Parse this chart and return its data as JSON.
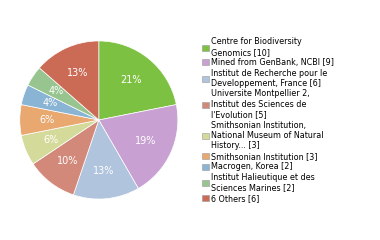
{
  "labels": [
    "Centre for Biodiversity\nGenomics [10]",
    "Mined from GenBank, NCBI [9]",
    "Institut de Recherche pour le\nDeveloppement, France [6]",
    "Universite Montpellier 2,\nInstitut des Sciences de\nl'Evolution [5]",
    "Smithsonian Institution,\nNational Museum of Natural\nHistory... [3]",
    "Smithsonian Institution [3]",
    "Macrogen, Korea [2]",
    "Institut Halieutique et des\nSciences Marines [2]",
    "6 Others [6]"
  ],
  "values": [
    21,
    19,
    13,
    10,
    6,
    6,
    4,
    4,
    13
  ],
  "colors": [
    "#7dc142",
    "#c8a0d2",
    "#b0c4de",
    "#d2897a",
    "#d4db9a",
    "#e8a870",
    "#8ab4d4",
    "#98c490",
    "#cc6b55"
  ],
  "pct_labels": [
    "21%",
    "19%",
    "13%",
    "10%",
    "6%",
    "6%",
    "4%",
    "4%",
    "13%"
  ],
  "startangle": 90,
  "legend_fontsize": 5.8,
  "pct_fontsize": 7.0
}
